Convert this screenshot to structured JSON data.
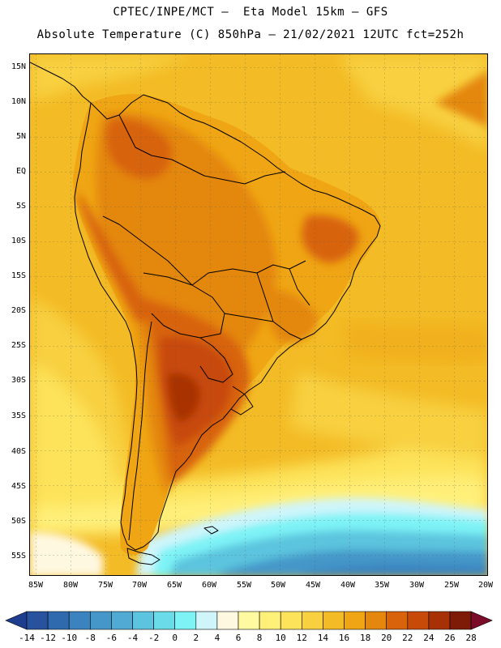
{
  "title_line1": "CPTEC/INPE/MCT –  Eta Model 15km – GFS",
  "title_line2": "Absolute Temperature (C) 850hPa – 21/02/2021 12UTC fct=252h",
  "lat_labels": [
    "15N",
    "10N",
    "5N",
    "EQ",
    "5S",
    "10S",
    "15S",
    "20S",
    "25S",
    "30S",
    "35S",
    "40S",
    "45S",
    "50S",
    "55S"
  ],
  "lon_labels": [
    "85W",
    "80W",
    "75W",
    "70W",
    "65W",
    "60W",
    "55W",
    "50W",
    "45W",
    "40W",
    "35W",
    "30W",
    "25W",
    "20W"
  ],
  "legend": {
    "ticks": [
      "-14",
      "-12",
      "-10",
      "-8",
      "-6",
      "-4",
      "-2",
      "0",
      "2",
      "4",
      "6",
      "8",
      "10",
      "12",
      "14",
      "16",
      "18",
      "20",
      "22",
      "24",
      "26",
      "28"
    ],
    "colors": [
      "#1e3d8f",
      "#27529e",
      "#2f6aae",
      "#3a83bf",
      "#4597c9",
      "#50aad3",
      "#5cc4de",
      "#6adbe8",
      "#7df3f6",
      "#cff5fb",
      "#fff8e1",
      "#fffaa0",
      "#fff07a",
      "#fde35a",
      "#f8d040",
      "#f3bb25",
      "#efa514",
      "#e4870c",
      "#d8630a",
      "#c84a08",
      "#a83005",
      "#7e1a08",
      "#7a0c2a"
    ]
  },
  "colors": {
    "ocean_warm": "#f3bb25",
    "ocean_mid": "#f8d040",
    "land_hot": "#d8630a",
    "land_very_hot": "#a83005",
    "cold_water": "#50aad3"
  }
}
